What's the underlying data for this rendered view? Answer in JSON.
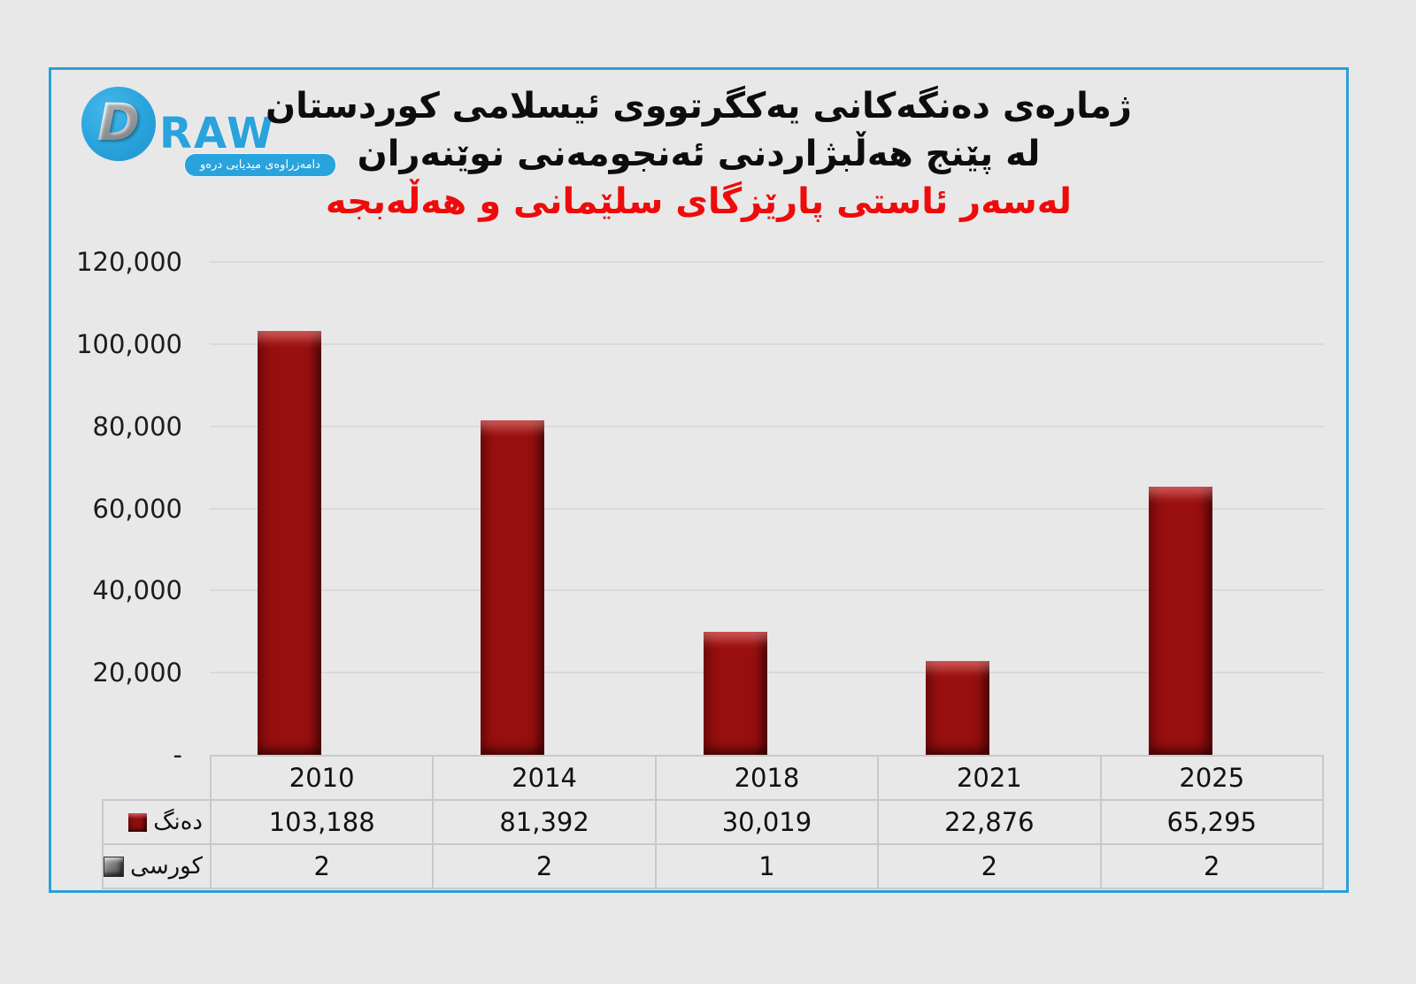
{
  "brand": {
    "d_letter": "D",
    "raw_wordmark": "RAW",
    "tagline": "دامەزراوەی میدیایی درەو"
  },
  "title": {
    "line1": "ژمارەی دەنگەکانی یەکگرتووی ئیسلامی کوردستان",
    "line2": "لە پێنج هەڵبژاردنی ئەنجومەنی نوێنەران",
    "line3": "لەسەر ئاستی پارێزگای سلێمانی و هەڵەبجە"
  },
  "colors": {
    "accent_blue": "#2BA0D8",
    "bar_red": "#990F0F",
    "subtitle_red": "#EF0B0B",
    "seat_gray": "#6F6F6F",
    "background": "#E8E8E8",
    "gridline": "#DADADA",
    "table_border": "#C9C9C9"
  },
  "chart_data": {
    "type": "bar",
    "title": "ژمارەی دەنگەکانی یەکگرتووی ئیسلامی کوردستان لە پێنج هەڵبژاردنی ئەنجومەنی نوێنەران",
    "subtitle": "لەسەر ئاستی پارێزگای سلێمانی و هەڵەبجە",
    "categories": [
      "2010",
      "2014",
      "2018",
      "2021",
      "2025"
    ],
    "series": [
      {
        "name": "دەنگ",
        "values": [
          103188,
          81392,
          30019,
          22876,
          65295
        ],
        "values_display": [
          "103,188",
          "81,392",
          "30,019",
          "22,876",
          "65,295"
        ],
        "color": "#990F0F"
      },
      {
        "name": "کورسی",
        "values": [
          2,
          2,
          1,
          2,
          2
        ],
        "values_display": [
          "2",
          "2",
          "1",
          "2",
          "2"
        ],
        "color": "#6F6F6F"
      }
    ],
    "ylim": [
      0,
      120000
    ],
    "ytick_step": 20000,
    "ytick_labels": [
      "-",
      "20,000",
      "40,000",
      "60,000",
      "80,000",
      "100,000",
      "120,000"
    ],
    "grid": true,
    "legend_position": "table-row-labels"
  }
}
